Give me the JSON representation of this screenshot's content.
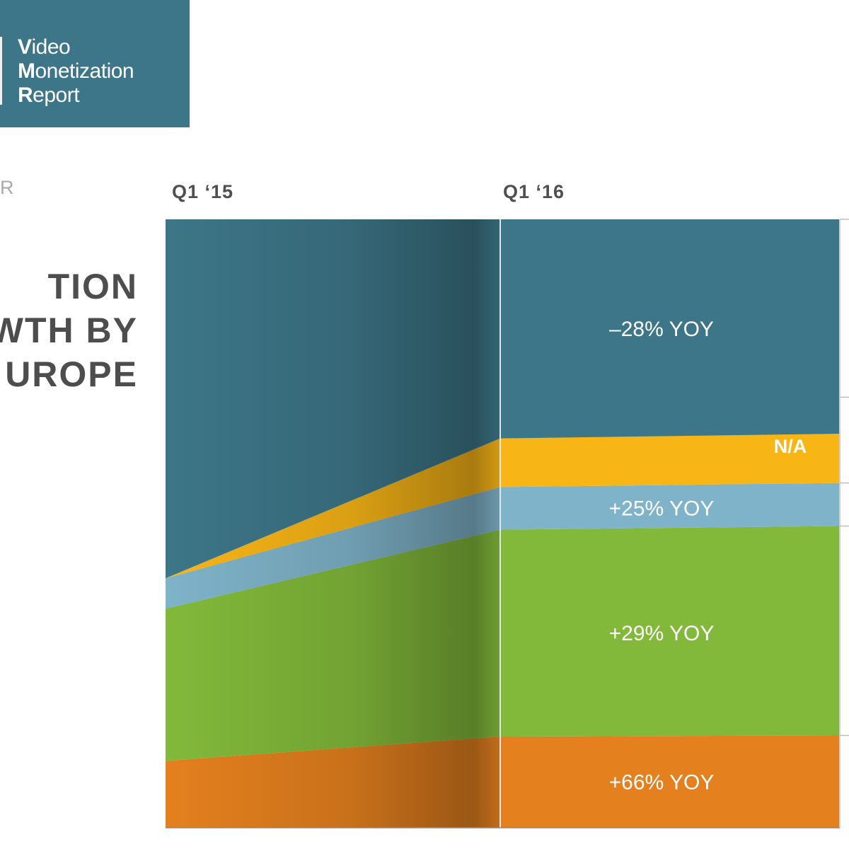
{
  "logo": {
    "line1_cap": "V",
    "line1_rest": "ideo",
    "line2_cap": "M",
    "line2_rest": "onetization",
    "line3_cap": "R",
    "line3_rest": "eport"
  },
  "overline": "R",
  "headline": [
    "TION",
    "WTH BY",
    "UROPE"
  ],
  "colors": {
    "brand": "#3d7688",
    "segment_1": "#3d7688",
    "segment_2": "#f8b516",
    "segment_3": "#7fb3c9",
    "segment_4": "#82b93a",
    "segment_5": "#e4801e"
  },
  "chart_data": {
    "type": "area",
    "categories": [
      "Q1 ‘15",
      "Q1 ‘16"
    ],
    "series": [
      {
        "name": "",
        "values": [
          11,
          15
        ],
        "label": "+66% YOY",
        "color": "#e4801e"
      },
      {
        "name": "",
        "values": [
          25,
          34
        ],
        "label": "+29% YOY",
        "color": "#82b93a"
      },
      {
        "name": "",
        "values": [
          5,
          7
        ],
        "label": "+25% YOY",
        "color": "#7fb3c9"
      },
      {
        "name": "",
        "values": [
          0,
          8
        ],
        "label": "N/A",
        "color": "#f8b516"
      },
      {
        "name": "",
        "values": [
          59,
          36
        ],
        "label": "–28% YOY",
        "color": "#3d7688"
      }
    ],
    "ylim": [
      0,
      100
    ],
    "grid": false
  }
}
